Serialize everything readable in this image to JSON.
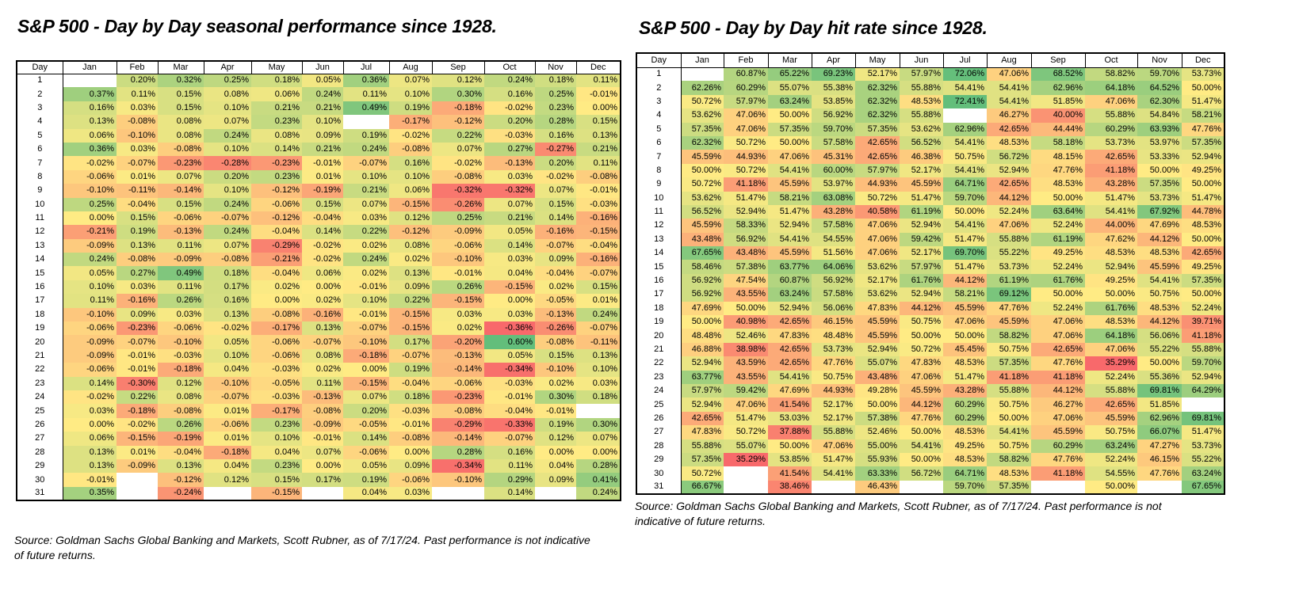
{
  "charts": [
    {
      "title": "S&P 500 - Day by Day seasonal performance since 1928.",
      "source": "Source: Goldman Sachs Global Banking and Markets, Scott Rubner,  as of 7/17/24. Past performance is not indicative of future returns.",
      "header": [
        "Day",
        "Jan",
        "Feb",
        "Mar",
        "Apr",
        "May",
        "Jun",
        "Jul",
        "Aug",
        "Sep",
        "Oct",
        "Nov",
        "Dec"
      ],
      "rows": [
        [
          null,
          0.2,
          0.32,
          0.25,
          0.18,
          0.05,
          0.36,
          0.07,
          0.12,
          0.24,
          0.18,
          0.11
        ],
        [
          0.37,
          0.11,
          0.15,
          0.08,
          0.06,
          0.24,
          0.11,
          0.1,
          0.3,
          0.16,
          0.25,
          -0.01
        ],
        [
          0.16,
          0.03,
          0.15,
          0.1,
          0.21,
          0.21,
          0.49,
          0.19,
          -0.18,
          -0.02,
          0.23,
          0.0
        ],
        [
          0.13,
          -0.08,
          0.08,
          0.07,
          0.23,
          0.1,
          null,
          -0.17,
          -0.12,
          0.2,
          0.28,
          0.15
        ],
        [
          0.06,
          -0.1,
          0.08,
          0.24,
          0.08,
          0.09,
          0.19,
          -0.02,
          0.22,
          -0.03,
          0.16,
          0.13
        ],
        [
          0.36,
          0.03,
          -0.08,
          0.1,
          0.14,
          0.21,
          0.24,
          -0.08,
          0.07,
          0.27,
          -0.27,
          0.21
        ],
        [
          -0.02,
          -0.07,
          -0.23,
          -0.28,
          -0.23,
          -0.01,
          -0.07,
          0.16,
          -0.02,
          -0.13,
          0.2,
          0.11
        ],
        [
          -0.06,
          0.01,
          0.07,
          0.2,
          0.23,
          0.01,
          0.1,
          0.1,
          -0.08,
          0.03,
          -0.02,
          -0.08
        ],
        [
          -0.1,
          -0.11,
          -0.14,
          0.1,
          -0.12,
          -0.19,
          0.21,
          0.06,
          -0.32,
          -0.32,
          0.07,
          -0.01
        ],
        [
          0.25,
          -0.04,
          0.15,
          0.24,
          -0.06,
          0.15,
          0.07,
          -0.15,
          -0.26,
          0.07,
          0.15,
          -0.03
        ],
        [
          0.0,
          0.15,
          -0.06,
          -0.07,
          -0.12,
          -0.04,
          0.03,
          0.12,
          0.25,
          0.21,
          0.14,
          -0.16
        ],
        [
          -0.21,
          0.19,
          -0.13,
          0.24,
          -0.04,
          0.14,
          0.22,
          -0.12,
          -0.09,
          0.05,
          -0.16,
          -0.15
        ],
        [
          -0.09,
          0.13,
          0.11,
          0.07,
          -0.29,
          -0.02,
          0.02,
          0.08,
          -0.06,
          0.14,
          -0.07,
          -0.04
        ],
        [
          0.24,
          -0.08,
          -0.09,
          -0.08,
          -0.21,
          -0.02,
          0.24,
          0.02,
          -0.1,
          0.03,
          0.09,
          -0.16
        ],
        [
          0.05,
          0.27,
          0.49,
          0.18,
          -0.04,
          0.06,
          0.02,
          0.13,
          -0.01,
          0.04,
          -0.04,
          -0.07
        ],
        [
          0.1,
          0.03,
          0.11,
          0.17,
          0.02,
          0.0,
          -0.01,
          0.09,
          0.26,
          -0.15,
          0.02,
          0.15
        ],
        [
          0.11,
          -0.16,
          0.26,
          0.16,
          0.0,
          0.02,
          0.1,
          0.22,
          -0.15,
          0.0,
          -0.05,
          0.01
        ],
        [
          -0.1,
          0.09,
          0.03,
          0.13,
          -0.08,
          -0.16,
          -0.01,
          -0.15,
          0.03,
          0.03,
          -0.13,
          0.24
        ],
        [
          -0.06,
          -0.23,
          -0.06,
          -0.02,
          -0.17,
          0.13,
          -0.07,
          -0.15,
          0.02,
          -0.36,
          -0.26,
          -0.07
        ],
        [
          -0.09,
          -0.07,
          -0.1,
          0.05,
          -0.06,
          -0.07,
          -0.1,
          0.17,
          -0.2,
          0.6,
          -0.08,
          -0.11
        ],
        [
          -0.09,
          -0.01,
          -0.03,
          0.1,
          -0.06,
          0.08,
          -0.18,
          -0.07,
          -0.13,
          0.05,
          0.15,
          0.13
        ],
        [
          -0.06,
          -0.01,
          -0.18,
          0.04,
          -0.03,
          0.02,
          0.0,
          0.19,
          -0.14,
          -0.34,
          -0.1,
          0.1
        ],
        [
          0.14,
          -0.3,
          0.12,
          -0.1,
          -0.05,
          0.11,
          -0.15,
          -0.04,
          -0.06,
          -0.03,
          0.02,
          0.03
        ],
        [
          -0.02,
          0.22,
          0.08,
          -0.07,
          -0.03,
          -0.13,
          0.07,
          0.18,
          -0.23,
          -0.01,
          0.3,
          0.18
        ],
        [
          0.03,
          -0.18,
          -0.08,
          0.01,
          -0.17,
          -0.08,
          0.2,
          -0.03,
          -0.08,
          -0.04,
          -0.01,
          null
        ],
        [
          0.0,
          -0.02,
          0.26,
          -0.06,
          0.23,
          -0.09,
          -0.05,
          -0.01,
          -0.29,
          -0.33,
          0.19,
          0.3
        ],
        [
          0.06,
          -0.15,
          -0.19,
          0.01,
          0.1,
          -0.01,
          0.14,
          -0.08,
          -0.14,
          -0.07,
          0.12,
          0.07
        ],
        [
          0.13,
          0.01,
          -0.04,
          -0.18,
          0.04,
          0.07,
          -0.06,
          0.0,
          0.28,
          0.16,
          0.0,
          0.0
        ],
        [
          0.13,
          -0.09,
          0.13,
          0.04,
          0.23,
          0.0,
          0.05,
          0.09,
          -0.34,
          0.11,
          0.04,
          0.28
        ],
        [
          -0.01,
          null,
          -0.12,
          0.12,
          0.15,
          0.17,
          0.19,
          -0.06,
          -0.1,
          0.29,
          0.09,
          0.41
        ],
        [
          0.35,
          null,
          -0.24,
          null,
          -0.15,
          null,
          0.04,
          0.03,
          null,
          0.14,
          null,
          0.24
        ]
      ]
    },
    {
      "title": "S&P 500 - Day by Day hit rate since 1928.",
      "source": "Source: Goldman Sachs Global Banking and Markets, Scott Rubner,  as of 7/17/24. Past performance is not indicative of future returns.",
      "header": [
        "Day",
        "Jan",
        "Feb",
        "Mar",
        "Apr",
        "May",
        "Jun",
        "Jul",
        "Aug",
        "Sep",
        "Oct",
        "Nov",
        "Dec"
      ],
      "rows": [
        [
          null,
          60.87,
          65.22,
          69.23,
          52.17,
          57.97,
          72.06,
          47.06,
          68.52,
          58.82,
          59.7,
          53.73
        ],
        [
          62.26,
          60.29,
          55.07,
          55.38,
          62.32,
          55.88,
          54.41,
          54.41,
          62.96,
          64.18,
          64.52,
          50.0
        ],
        [
          50.72,
          57.97,
          63.24,
          53.85,
          62.32,
          48.53,
          72.41,
          54.41,
          51.85,
          47.06,
          62.3,
          51.47
        ],
        [
          53.62,
          47.06,
          50.0,
          56.92,
          62.32,
          55.88,
          null,
          46.27,
          40.0,
          55.88,
          54.84,
          58.21
        ],
        [
          57.35,
          47.06,
          57.35,
          59.7,
          57.35,
          53.62,
          62.96,
          42.65,
          44.44,
          60.29,
          63.93,
          47.76
        ],
        [
          62.32,
          50.72,
          50.0,
          57.58,
          42.65,
          56.52,
          54.41,
          48.53,
          58.18,
          53.73,
          53.97,
          57.35
        ],
        [
          45.59,
          44.93,
          47.06,
          45.31,
          42.65,
          46.38,
          50.75,
          56.72,
          48.15,
          42.65,
          53.33,
          52.94
        ],
        [
          50.0,
          50.72,
          54.41,
          60.0,
          57.97,
          52.17,
          54.41,
          52.94,
          47.76,
          41.18,
          50.0,
          49.25
        ],
        [
          50.72,
          41.18,
          45.59,
          53.97,
          44.93,
          45.59,
          64.71,
          42.65,
          48.53,
          43.28,
          57.35,
          50.0
        ],
        [
          53.62,
          51.47,
          58.21,
          63.08,
          50.72,
          51.47,
          59.7,
          44.12,
          50.0,
          51.47,
          53.73,
          51.47
        ],
        [
          56.52,
          52.94,
          51.47,
          43.28,
          40.58,
          61.19,
          50.0,
          52.24,
          63.64,
          54.41,
          67.92,
          44.78
        ],
        [
          45.59,
          58.33,
          52.94,
          57.58,
          47.06,
          52.94,
          54.41,
          47.06,
          52.24,
          44.0,
          47.69,
          48.53
        ],
        [
          43.48,
          56.92,
          54.41,
          54.55,
          47.06,
          59.42,
          51.47,
          55.88,
          61.19,
          47.62,
          44.12,
          50.0
        ],
        [
          67.65,
          43.48,
          45.59,
          51.56,
          47.06,
          52.17,
          69.7,
          55.22,
          49.25,
          48.53,
          48.53,
          42.65
        ],
        [
          58.46,
          57.38,
          63.77,
          64.06,
          53.62,
          57.97,
          51.47,
          53.73,
          52.24,
          52.94,
          45.59,
          49.25
        ],
        [
          56.92,
          47.54,
          60.87,
          56.92,
          52.17,
          61.76,
          44.12,
          61.19,
          61.76,
          49.25,
          54.41,
          57.35
        ],
        [
          56.92,
          43.55,
          63.24,
          57.58,
          53.62,
          52.94,
          58.21,
          69.12,
          50.0,
          50.0,
          50.75,
          50.0
        ],
        [
          47.69,
          50.0,
          52.94,
          56.06,
          47.83,
          44.12,
          45.59,
          47.76,
          52.24,
          61.76,
          48.53,
          52.24
        ],
        [
          50.0,
          40.98,
          42.65,
          46.15,
          45.59,
          50.75,
          47.06,
          45.59,
          47.06,
          48.53,
          44.12,
          39.71
        ],
        [
          48.48,
          52.46,
          47.83,
          48.48,
          45.59,
          50.0,
          50.0,
          58.82,
          47.06,
          64.18,
          56.06,
          41.18
        ],
        [
          46.88,
          38.98,
          42.65,
          53.73,
          52.94,
          50.72,
          45.45,
          50.75,
          42.65,
          47.06,
          55.22,
          55.88
        ],
        [
          52.94,
          43.59,
          42.65,
          47.76,
          55.07,
          47.83,
          48.53,
          57.35,
          47.76,
          35.29,
          50.0,
          59.7
        ],
        [
          63.77,
          43.55,
          54.41,
          50.75,
          43.48,
          47.06,
          51.47,
          41.18,
          41.18,
          52.24,
          55.36,
          52.94
        ],
        [
          57.97,
          59.42,
          47.69,
          44.93,
          49.28,
          45.59,
          43.28,
          55.88,
          44.12,
          55.88,
          69.81,
          64.29
        ],
        [
          52.94,
          47.06,
          41.54,
          52.17,
          50.0,
          44.12,
          60.29,
          50.75,
          46.27,
          42.65,
          51.85,
          null
        ],
        [
          42.65,
          51.47,
          53.03,
          52.17,
          57.38,
          47.76,
          60.29,
          50.0,
          47.06,
          45.59,
          62.96,
          69.81
        ],
        [
          47.83,
          50.72,
          37.88,
          55.88,
          52.46,
          50.0,
          48.53,
          54.41,
          45.59,
          50.75,
          66.07,
          51.47
        ],
        [
          55.88,
          55.07,
          50.0,
          47.06,
          55.0,
          54.41,
          49.25,
          50.75,
          60.29,
          63.24,
          47.27,
          53.73
        ],
        [
          57.35,
          35.29,
          53.85,
          51.47,
          55.93,
          50.0,
          48.53,
          58.82,
          47.76,
          52.24,
          46.15,
          55.22
        ],
        [
          50.72,
          null,
          41.54,
          54.41,
          63.33,
          56.72,
          64.71,
          48.53,
          41.18,
          54.55,
          47.76,
          63.24
        ],
        [
          66.67,
          null,
          38.46,
          null,
          46.43,
          null,
          59.7,
          57.35,
          null,
          50.0,
          null,
          67.65
        ]
      ]
    }
  ],
  "chart_data": [
    {
      "type": "heatmap",
      "title": "S&P 500 - Day by Day seasonal performance since 1928.",
      "x": [
        "Jan",
        "Feb",
        "Mar",
        "Apr",
        "May",
        "Jun",
        "Jul",
        "Aug",
        "Sep",
        "Oct",
        "Nov",
        "Dec"
      ],
      "y": "Day 1-31",
      "unit": "%",
      "colors": {
        "low": "#f8696b",
        "mid": "#ffeb84",
        "high": "#63be7b"
      }
    },
    {
      "type": "heatmap",
      "title": "S&P 500 - Day by Day hit rate since 1928.",
      "x": [
        "Jan",
        "Feb",
        "Mar",
        "Apr",
        "May",
        "Jun",
        "Jul",
        "Aug",
        "Sep",
        "Oct",
        "Nov",
        "Dec"
      ],
      "y": "Day 1-31",
      "unit": "%",
      "colors": {
        "low": "#f8696b",
        "mid": "#ffeb84",
        "high": "#63be7b"
      }
    }
  ]
}
